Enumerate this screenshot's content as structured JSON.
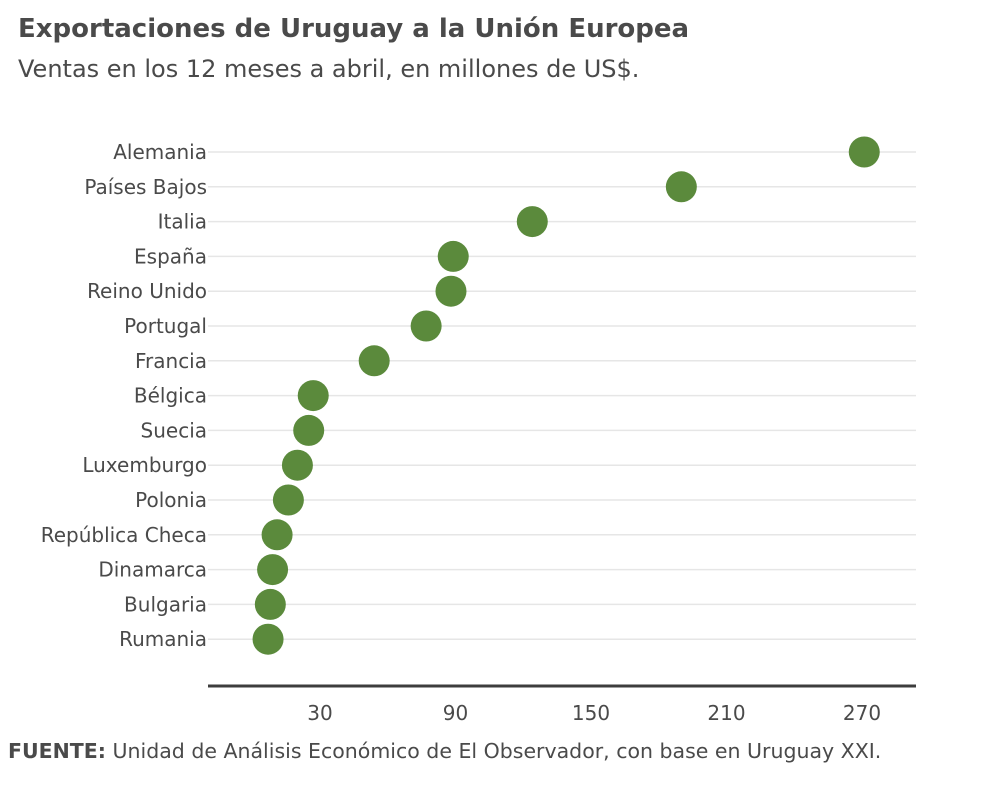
{
  "title": "Exportaciones de Uruguay a la Unión Europea",
  "subtitle": "Ventas en los 12 meses a abril, en millones de US$.",
  "source_label": "FUENTE:",
  "source_text": "Unidad de Análisis Económico de El Observador, con base en Uruguay XXI.",
  "chart_data": {
    "type": "scatter",
    "title": "Exportaciones de Uruguay a la Unión Europea",
    "subtitle": "Ventas en los 12 meses a abril, en millones de US$.",
    "xlabel": "",
    "ylabel": "",
    "categories": [
      "Alemania",
      "Países Bajos",
      "Italia",
      "España",
      "Reino Unido",
      "Portugal",
      "Francia",
      "Bélgica",
      "Suecia",
      "Luxemburgo",
      "Polonia",
      "República Checa",
      "Dinamarca",
      "Bulgaria",
      "Rumania"
    ],
    "values": [
      271,
      190,
      124,
      89,
      88,
      77,
      54,
      27,
      25,
      20,
      16,
      11,
      9,
      8,
      7
    ],
    "x_ticks": [
      30,
      90,
      150,
      210,
      270
    ],
    "xlim": [
      -20,
      300
    ],
    "grid": true,
    "marker_color": "#5b8a3c"
  }
}
